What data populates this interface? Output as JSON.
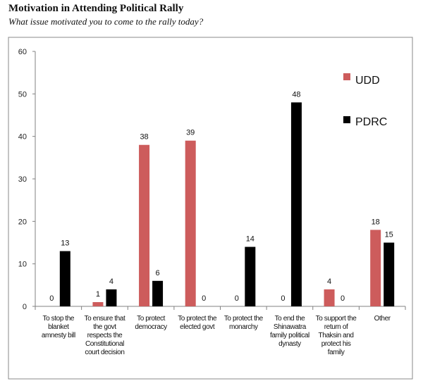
{
  "header": {
    "title": "Motivation in Attending Political Rally",
    "subtitle": "What issue motivated you to come to the rally today?"
  },
  "colors": {
    "udd": "#cd5c5c",
    "pdrc": "#000000",
    "axis": "#808080",
    "frame": "#888888"
  },
  "chart_data": {
    "type": "bar",
    "title": "",
    "xlabel": "",
    "ylabel": "",
    "ylim": [
      0,
      60
    ],
    "yticks": [
      0,
      10,
      20,
      30,
      40,
      50,
      60
    ],
    "grid": false,
    "legend_position": "top-right",
    "categories": [
      [
        "To stop the",
        "blanket",
        "amnesty bill"
      ],
      [
        "To ensure that",
        "the govt",
        "respects the",
        "Constitutional",
        "court decision"
      ],
      [
        "To protect",
        "democracy"
      ],
      [
        "To protect the",
        "elected govt"
      ],
      [
        "To protect the",
        "monarchy"
      ],
      [
        "To end the",
        "Shinawatra",
        "family political",
        "dynasty"
      ],
      [
        "To support the",
        "return of",
        "Thaksin and",
        "protect his",
        "family"
      ],
      [
        "Other"
      ]
    ],
    "series": [
      {
        "name": "UDD",
        "color": "#cd5c5c",
        "values": [
          0,
          1,
          38,
          39,
          0,
          0,
          4,
          18
        ]
      },
      {
        "name": "PDRC",
        "color": "#000000",
        "values": [
          13,
          4,
          6,
          0,
          14,
          48,
          0,
          15
        ]
      }
    ]
  }
}
